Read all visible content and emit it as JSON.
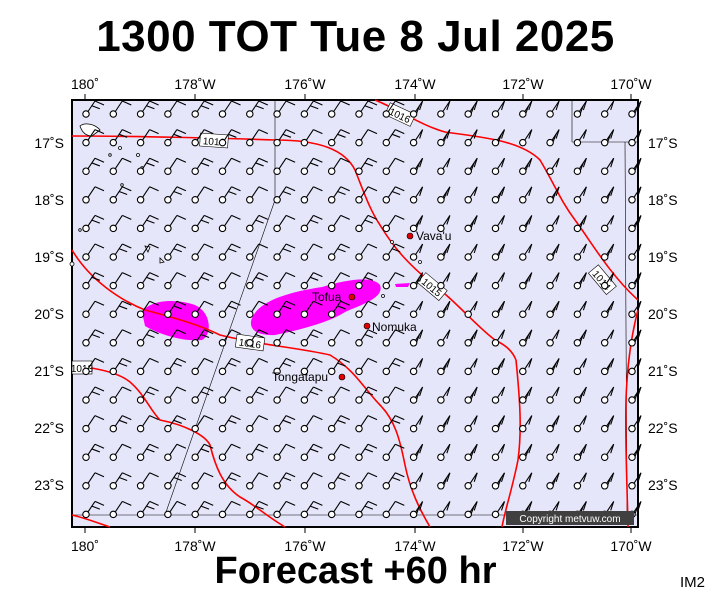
{
  "title": "1300 TOT Tue 8 Jul 2025",
  "footer": "Forecast +60 hr",
  "image_label": "IM2",
  "copyright": "Copyright metvuw.com",
  "lon_labels": [
    "180˚",
    "178˚W",
    "176˚W",
    "174˚W",
    "172˚W",
    "170˚W"
  ],
  "lat_labels": [
    "17˚S",
    "18˚S",
    "19˚S",
    "20˚S",
    "21˚S",
    "22˚S",
    "23˚S"
  ],
  "places": [
    {
      "name": "Vava'u"
    },
    {
      "name": "Tofua"
    },
    {
      "name": "Nomuka"
    },
    {
      "name": "Tongatapu"
    }
  ],
  "isobars": [
    "1016",
    "1016",
    "1016",
    "1015",
    "1014",
    "1013"
  ],
  "colors": {
    "ocean": "#e6e6fa",
    "isobar": "#ff0000",
    "rain": "#ff00ff",
    "place": "#dd0000"
  }
}
